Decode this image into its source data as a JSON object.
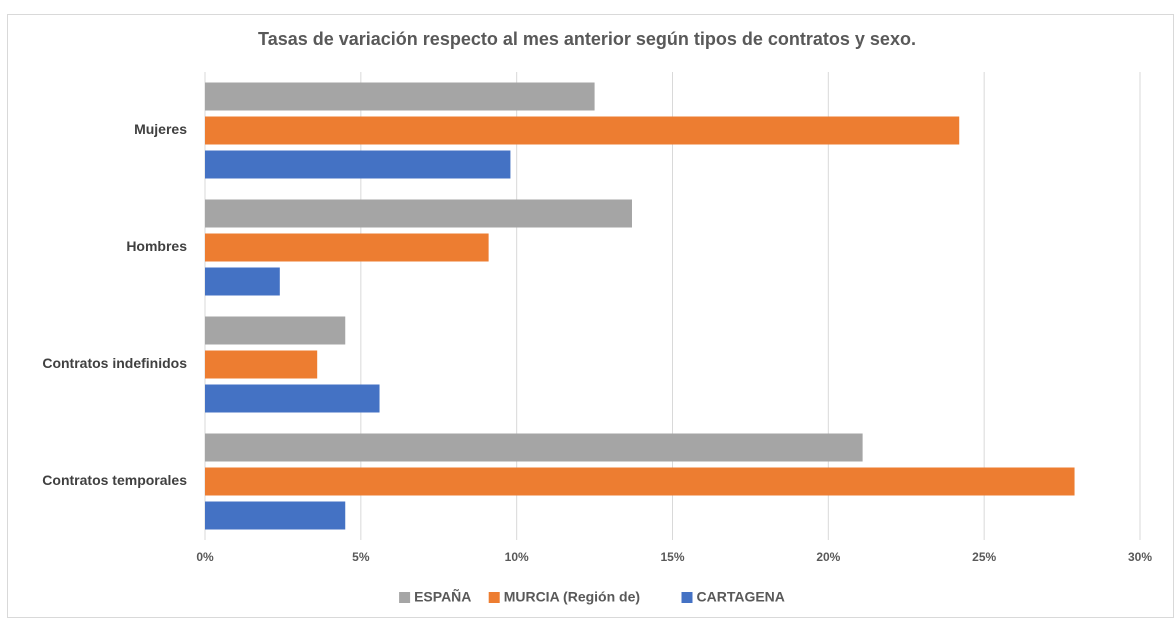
{
  "chart_data": {
    "type": "bar",
    "orientation": "horizontal",
    "title": "Tasas de variación respecto al mes anterior según tipos de contratos y sexo.",
    "categories": [
      "Mujeres",
      "Hombres",
      "Contratos indefinidos",
      "Contratos temporales"
    ],
    "series": [
      {
        "name": "ESPAÑA",
        "color": "#a5a5a5",
        "values": [
          12.5,
          13.7,
          4.5,
          21.1
        ]
      },
      {
        "name": "MURCIA (Región de)",
        "color": "#ed7d31",
        "values": [
          24.2,
          9.1,
          3.6,
          27.9
        ]
      },
      {
        "name": "CARTAGENA",
        "color": "#4472c4",
        "values": [
          9.8,
          2.4,
          5.6,
          4.5
        ]
      }
    ],
    "xlim": [
      0,
      30
    ],
    "xticks": [
      {
        "value": 0,
        "label": "0%"
      },
      {
        "value": 5,
        "label": "5%"
      },
      {
        "value": 10,
        "label": "10%"
      },
      {
        "value": 15,
        "label": "15%"
      },
      {
        "value": 20,
        "label": "20%"
      },
      {
        "value": 25,
        "label": "25%"
      },
      {
        "value": 30,
        "label": "30%"
      }
    ],
    "grid": true,
    "legend": "bottom"
  }
}
